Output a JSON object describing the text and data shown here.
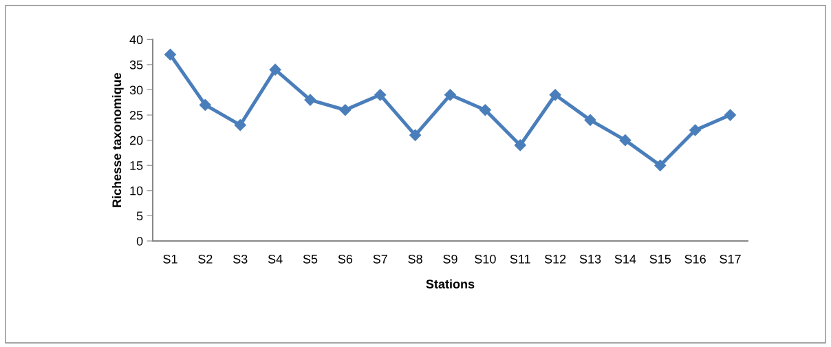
{
  "chart_data": {
    "type": "line",
    "xlabel": "Stations",
    "ylabel": "Richesse taxonomique",
    "categories": [
      "S1",
      "S2",
      "S3",
      "S4",
      "S5",
      "S6",
      "S7",
      "S8",
      "S9",
      "S10",
      "S11",
      "S12",
      "S13",
      "S14",
      "S15",
      "S16",
      "S17"
    ],
    "series": [
      {
        "color": "#4a7ebb",
        "values": [
          37,
          27,
          23,
          34,
          28,
          26,
          29,
          21,
          29,
          26,
          19,
          29,
          24,
          20,
          15,
          22,
          25
        ]
      }
    ],
    "ylim": [
      0,
      40
    ],
    "yticks": [
      0,
      5,
      10,
      15,
      20,
      25,
      30,
      35,
      40
    ],
    "marker": "diamond",
    "line_style": "solid",
    "grid": false
  }
}
